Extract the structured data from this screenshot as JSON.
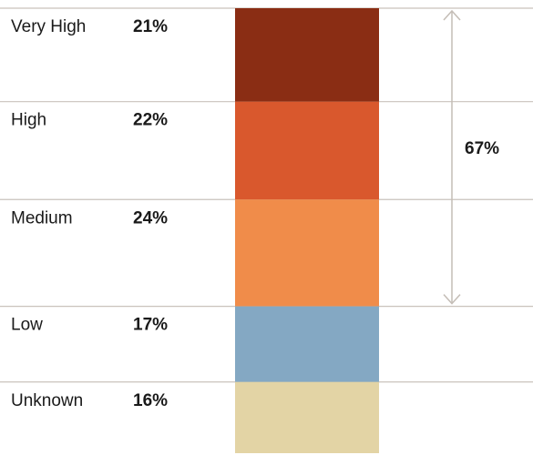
{
  "chart_data": {
    "type": "bar",
    "stacked": true,
    "orientation": "vertical",
    "categories": [
      "Very High",
      "High",
      "Medium",
      "Low",
      "Unknown"
    ],
    "values": [
      21,
      22,
      24,
      17,
      16
    ],
    "value_labels": [
      "21%",
      "22%",
      "24%",
      "17%",
      "16%"
    ],
    "colors": [
      "#8a2d14",
      "#d9582d",
      "#f08c4a",
      "#84a8c3",
      "#e3d4a5"
    ],
    "bracket": {
      "label": "67%",
      "spans_categories": [
        "Very High",
        "High",
        "Medium"
      ]
    },
    "grid": true
  }
}
